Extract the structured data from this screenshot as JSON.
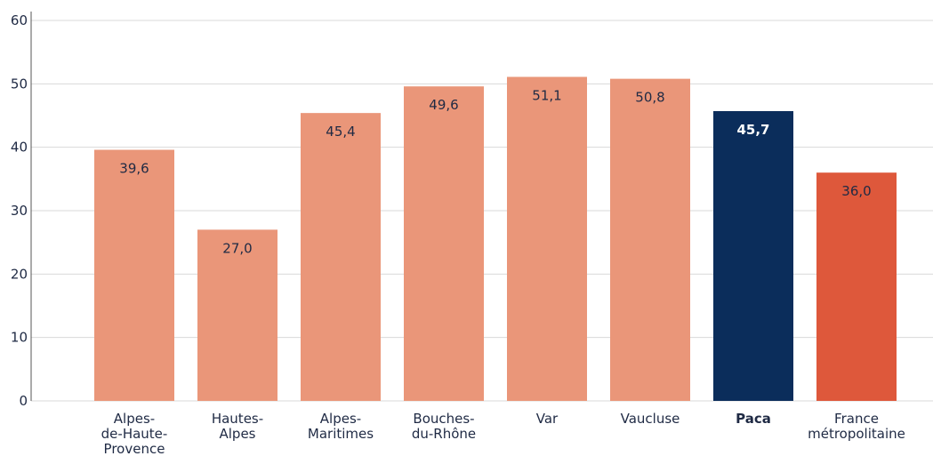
{
  "chart_data": {
    "type": "bar",
    "categories": [
      "Alpes-\nde-Haute-\nProvence",
      "Hautes-\nAlpes",
      "Alpes-\nMaritimes",
      "Bouches-\ndu-Rhône",
      "Var",
      "Vaucluse",
      "Paca",
      "France\nmétropolitaine"
    ],
    "values": [
      39.6,
      27.0,
      45.4,
      49.6,
      51.1,
      50.8,
      45.7,
      36.0
    ],
    "value_labels": [
      "39,6",
      "27,0",
      "45,4",
      "49,6",
      "51,1",
      "50,8",
      "45,7",
      "36,0"
    ],
    "colors": [
      "#ea9679",
      "#ea9679",
      "#ea9679",
      "#ea9679",
      "#ea9679",
      "#ea9679",
      "#0b2d5b",
      "#de583b"
    ],
    "highlight_index": 6,
    "ylim": [
      0,
      60
    ],
    "yticks": [
      0,
      10,
      20,
      30,
      40,
      50,
      60
    ],
    "grid": true
  }
}
